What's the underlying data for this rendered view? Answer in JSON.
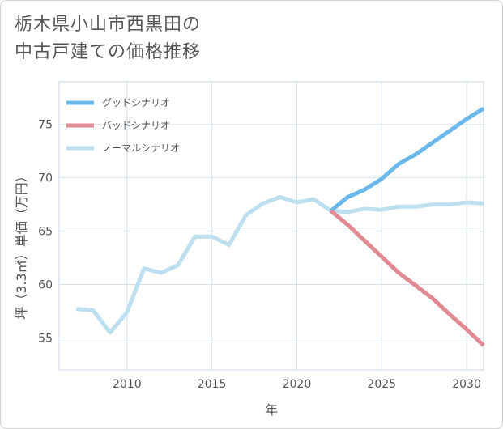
{
  "title_lines": [
    "栃木県小山市西黒田の",
    "中古戸建ての価格推移"
  ],
  "colors": {
    "good": "#6bb8ea",
    "bad": "#e08a93",
    "normal": "#bddff0",
    "grid": "#d5e2ee",
    "text": "#555555"
  },
  "chart_data": {
    "type": "line",
    "title": "栃木県小山市西黒田の中古戸建ての価格推移",
    "xlabel": "年",
    "ylabel": "坪（3.3㎡）単価（万円）",
    "xlim": [
      2006,
      2031
    ],
    "ylim": [
      52,
      79
    ],
    "xticks": [
      2010,
      2015,
      2020,
      2025,
      2030
    ],
    "yticks": [
      55,
      60,
      65,
      70,
      75
    ],
    "legend": [
      "グッドシナリオ",
      "バッドシナリオ",
      "ノーマルシナリオ"
    ],
    "series": [
      {
        "name": "ノーマルシナリオ",
        "key": "normal",
        "x": [
          2007,
          2008,
          2009,
          2010,
          2011,
          2012,
          2013,
          2014,
          2015,
          2016,
          2017,
          2018,
          2019,
          2020,
          2021,
          2022,
          2023,
          2024,
          2025,
          2026,
          2027,
          2028,
          2029,
          2030,
          2031
        ],
        "values": [
          57.7,
          57.6,
          55.5,
          57.4,
          61.5,
          61.1,
          61.8,
          64.5,
          64.5,
          63.7,
          66.5,
          67.6,
          68.2,
          67.7,
          68.0,
          66.9,
          66.8,
          67.1,
          67.0,
          67.3,
          67.3,
          67.5,
          67.5,
          67.7,
          67.6
        ]
      },
      {
        "name": "グッドシナリオ",
        "key": "good",
        "x": [
          2022,
          2023,
          2024,
          2025,
          2026,
          2027,
          2028,
          2029,
          2030,
          2031
        ],
        "values": [
          66.9,
          68.2,
          68.9,
          69.9,
          71.3,
          72.2,
          73.3,
          74.4,
          75.5,
          76.5
        ]
      },
      {
        "name": "バッドシナリオ",
        "key": "bad",
        "x": [
          2022,
          2023,
          2024,
          2025,
          2026,
          2027,
          2028,
          2029,
          2030,
          2031
        ],
        "values": [
          66.9,
          65.6,
          64.1,
          62.6,
          61.1,
          59.9,
          58.7,
          57.2,
          55.8,
          54.3
        ]
      }
    ]
  }
}
